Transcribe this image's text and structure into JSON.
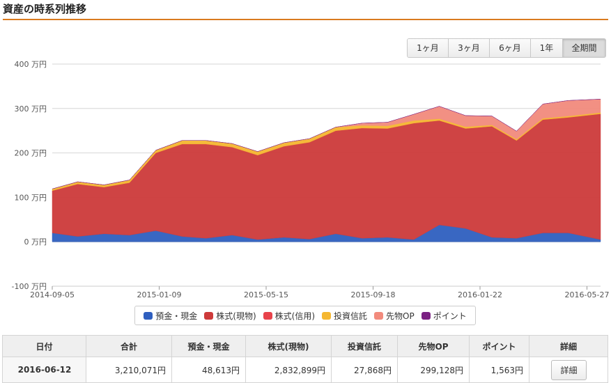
{
  "page": {
    "title": "資産の時系列推移"
  },
  "range_buttons": [
    {
      "label": "1ヶ月",
      "active": false
    },
    {
      "label": "3ヶ月",
      "active": false
    },
    {
      "label": "6ヶ月",
      "active": false
    },
    {
      "label": "1年",
      "active": false
    },
    {
      "label": "全期間",
      "active": true
    }
  ],
  "chart_data": {
    "type": "area",
    "stacked": true,
    "y_unit_label": "万円",
    "ylim": [
      -100,
      400
    ],
    "y_ticks": [
      -100,
      0,
      100,
      200,
      300,
      400
    ],
    "x_tick_labels": [
      "2014-09-05",
      "2015-01-09",
      "2015-05-15",
      "2015-09-18",
      "2016-01-22",
      "2016-05-27"
    ],
    "xlim": [
      "2014-09-05",
      "2016-06-12"
    ],
    "grid": true,
    "x": [
      "2014-09-05",
      "2014-10-05",
      "2014-11-05",
      "2014-12-05",
      "2015-01-05",
      "2015-02-05",
      "2015-03-05",
      "2015-04-05",
      "2015-05-05",
      "2015-06-05",
      "2015-07-05",
      "2015-08-05",
      "2015-09-05",
      "2015-10-05",
      "2015-11-05",
      "2015-12-05",
      "2016-01-05",
      "2016-02-05",
      "2016-03-05",
      "2016-04-05",
      "2016-05-05",
      "2016-06-12"
    ],
    "series": [
      {
        "name": "預金・現金",
        "color": "#2f5fbf",
        "values": [
          20,
          12,
          18,
          15,
          25,
          12,
          8,
          15,
          5,
          10,
          6,
          18,
          8,
          10,
          5,
          38,
          30,
          10,
          8,
          20,
          20,
          5
        ]
      },
      {
        "name": "株式(現物)",
        "color": "#cd3a3a",
        "values": [
          95,
          118,
          105,
          118,
          175,
          208,
          212,
          198,
          190,
          205,
          218,
          232,
          248,
          245,
          262,
          235,
          225,
          250,
          220,
          255,
          260,
          283
        ]
      },
      {
        "name": "株式(信用)",
        "color": "#e8434b",
        "values": [
          0,
          0,
          0,
          0,
          0,
          0,
          0,
          0,
          0,
          0,
          0,
          0,
          0,
          0,
          0,
          0,
          0,
          0,
          0,
          0,
          0,
          0
        ]
      },
      {
        "name": "投資信託",
        "color": "#f5b731",
        "values": [
          4,
          5,
          5,
          6,
          6,
          8,
          8,
          8,
          8,
          8,
          8,
          8,
          6,
          6,
          6,
          4,
          4,
          3,
          3,
          3,
          3,
          3
        ]
      },
      {
        "name": "先物OP",
        "color": "#f28b7d",
        "values": [
          0,
          0,
          0,
          0,
          0,
          0,
          0,
          0,
          0,
          0,
          0,
          0,
          5,
          8,
          14,
          28,
          25,
          20,
          18,
          32,
          35,
          30
        ]
      },
      {
        "name": "ポイント",
        "color": "#7b2183",
        "values": [
          0.1,
          0.1,
          0.1,
          0.1,
          0.1,
          0.1,
          0.1,
          0.1,
          0.1,
          0.1,
          0.1,
          0.1,
          0.1,
          0.1,
          0.1,
          0.1,
          0.1,
          0.1,
          0.1,
          0.1,
          0.1,
          0.2
        ]
      }
    ]
  },
  "table": {
    "headers": [
      "日付",
      "合計",
      "預金・現金",
      "株式(現物)",
      "投資信託",
      "先物OP",
      "ポイント",
      "詳細"
    ],
    "row": {
      "date": "2016-06-12",
      "total": "3,210,071円",
      "cash": "48,613円",
      "stock": "2,832,899円",
      "fund": "27,868円",
      "futures": "299,128円",
      "points": "1,563円",
      "detail_label": "詳細"
    }
  }
}
